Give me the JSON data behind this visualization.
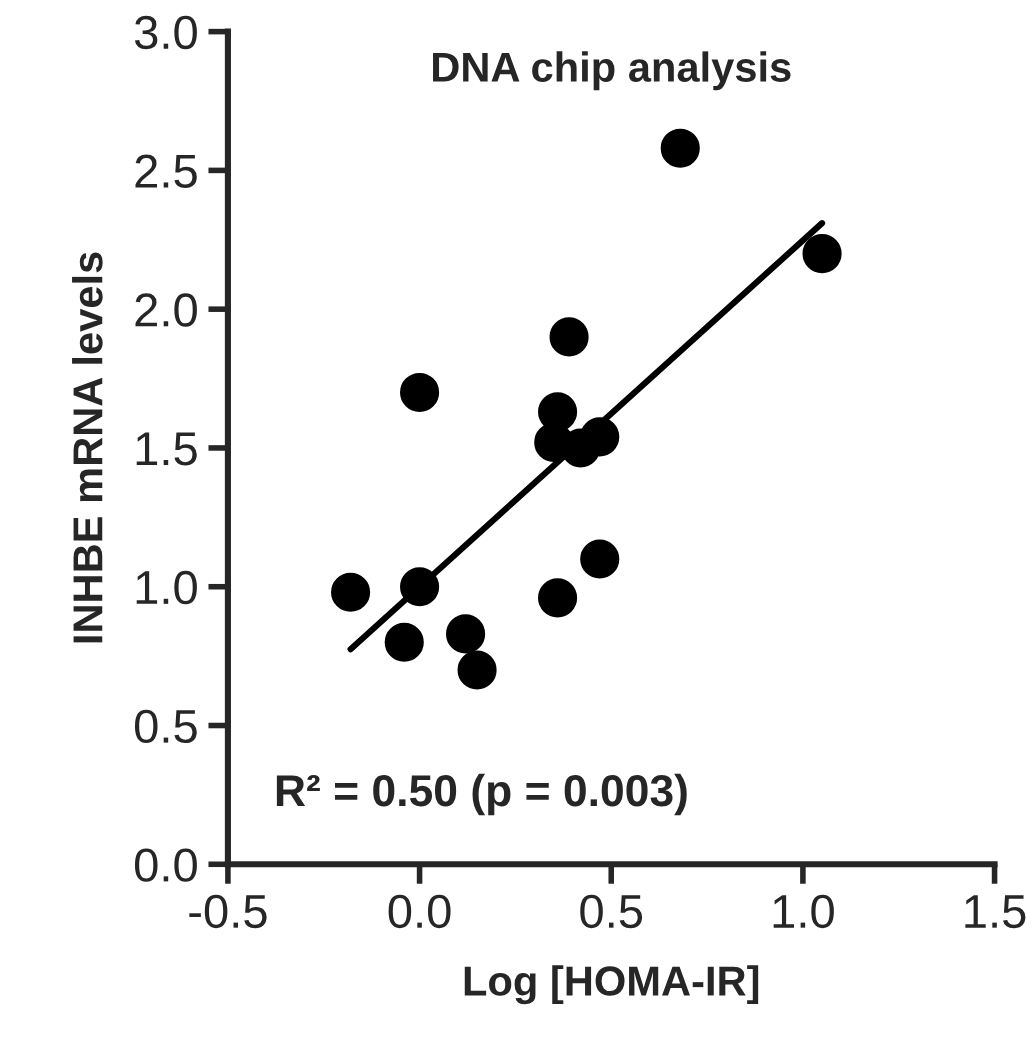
{
  "chart_data": {
    "type": "scatter",
    "title": "DNA chip analysis",
    "xlabel": "Log [HOMA-IR]",
    "ylabel": "INHBE mRNA levels",
    "annotations": [
      "R² = 0.50 (p = 0.003)"
    ],
    "series": [
      {
        "color": "#000000",
        "marker": "circle",
        "x": [
          -0.18,
          0.0,
          0.0,
          -0.04,
          0.12,
          0.15,
          0.36,
          0.35,
          0.39,
          0.42,
          0.47,
          0.36,
          0.47,
          0.68,
          1.05
        ],
        "values": [
          0.98,
          1.7,
          1.0,
          0.8,
          0.83,
          0.7,
          1.63,
          1.52,
          1.9,
          1.5,
          1.54,
          0.96,
          1.1,
          2.58,
          2.2
        ]
      },
      {
        "type": "line",
        "color": "#000000",
        "marker": "none",
        "x": [
          -0.18,
          1.05
        ],
        "values": [
          0.775,
          2.31
        ]
      }
    ],
    "xlim": [
      -0.5,
      1.5
    ],
    "xticks": [
      {
        "value": -0.5,
        "label": "-0.5"
      },
      {
        "value": 0,
        "label": "0.0"
      },
      {
        "value": 0.5,
        "label": "0.5"
      },
      {
        "value": 1.0,
        "label": "1.0"
      },
      {
        "value": 1.5,
        "label": "1.5"
      }
    ],
    "ylim": [
      0,
      3.0
    ],
    "yticks": [
      {
        "value": 0,
        "label": "0.0"
      },
      {
        "value": 0.5,
        "label": "0.5"
      },
      {
        "value": 1.0,
        "label": "1.0"
      },
      {
        "value": 1.5,
        "label": "1.5"
      },
      {
        "value": 2.0,
        "label": "2.0"
      },
      {
        "value": 2.5,
        "label": "2.5"
      },
      {
        "value": 3.0,
        "label": "3.0"
      }
    ],
    "grid": false,
    "legend": false
  }
}
